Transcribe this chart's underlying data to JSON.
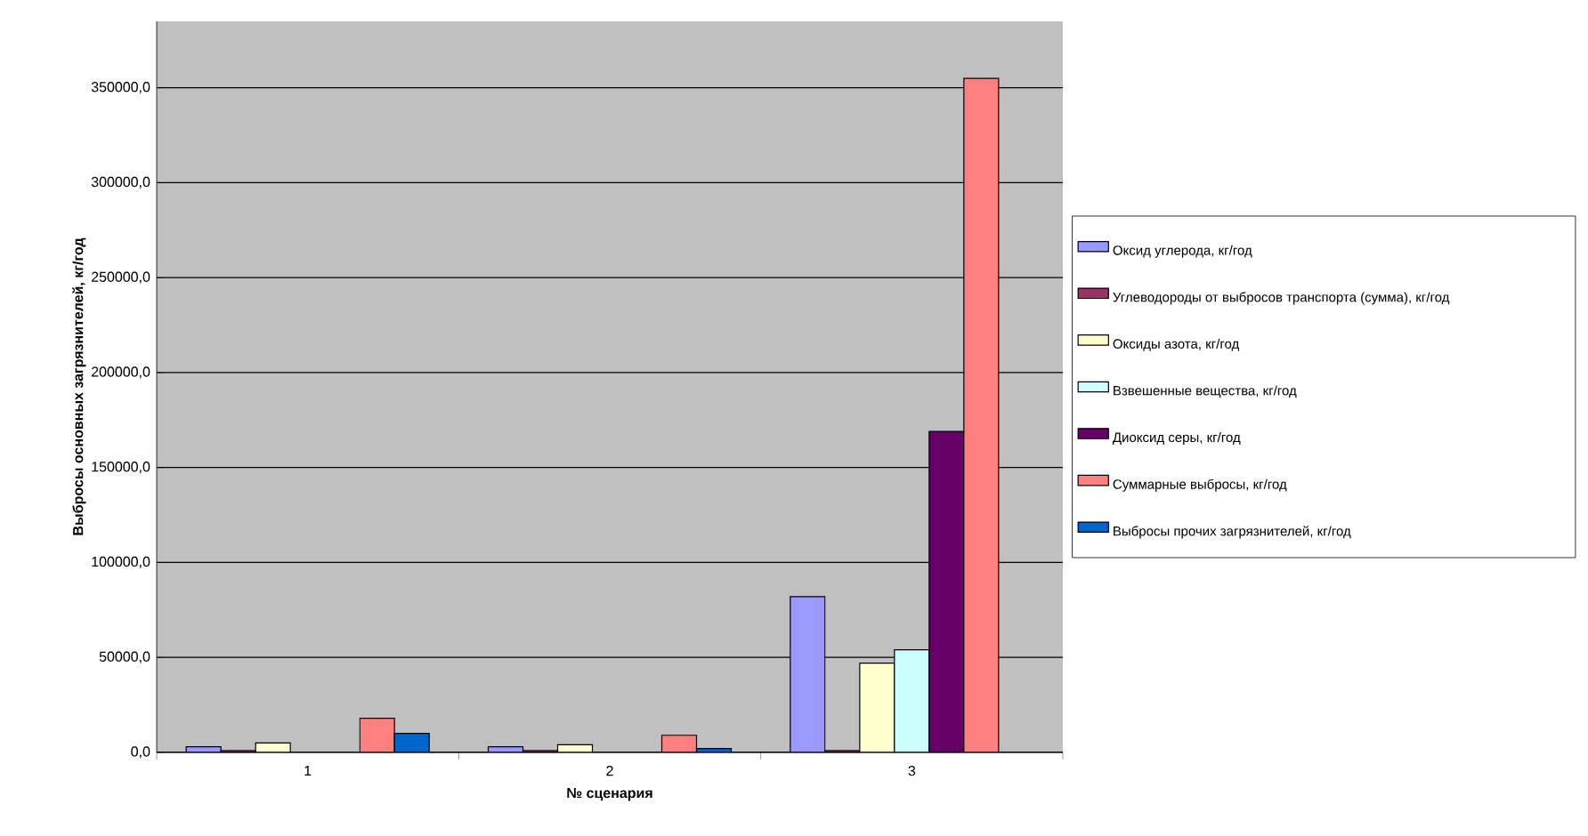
{
  "chart_data": {
    "type": "bar",
    "xlabel": "№ сценария",
    "ylabel": "Выбросы основных загрязнителей, кг/год",
    "categories": [
      "1",
      "2",
      "3"
    ],
    "series": [
      {
        "name": "Оксид углерода, кг/год",
        "color": "#9999ff",
        "values": [
          3000,
          3000,
          82000
        ]
      },
      {
        "name": "Углеводороды от выбросов транспорта (сумма), кг/год",
        "color": "#993366",
        "values": [
          1000,
          1000,
          1000
        ]
      },
      {
        "name": "Оксиды азота, кг/год",
        "color": "#ffffcc",
        "values": [
          5000,
          4000,
          47000
        ]
      },
      {
        "name": "Взвешенные вещества, кг/год",
        "color": "#ccffff",
        "values": [
          null,
          null,
          54000
        ]
      },
      {
        "name": "Диоксид серы, кг/год",
        "color": "#660066",
        "values": [
          null,
          null,
          169000
        ]
      },
      {
        "name": "Суммарные выбросы, кг/год",
        "color": "#ff8080",
        "values": [
          18000,
          9000,
          355000
        ]
      },
      {
        "name": "Выбросы прочих загрязнителей, кг/год",
        "color": "#0066cc",
        "values": [
          10000,
          2000,
          null
        ]
      }
    ],
    "ylim": [
      0,
      385000
    ],
    "yticks": [
      {
        "value": 0,
        "label": "0,0"
      },
      {
        "value": 50000,
        "label": "50000,0"
      },
      {
        "value": 100000,
        "label": "100000,0"
      },
      {
        "value": 150000,
        "label": "150000,0"
      },
      {
        "value": 200000,
        "label": "200000,0"
      },
      {
        "value": 250000,
        "label": "250000,0"
      },
      {
        "value": 300000,
        "label": "300000,0"
      },
      {
        "value": 350000,
        "label": "350000,0"
      }
    ],
    "grid": "y",
    "legend": "right"
  }
}
